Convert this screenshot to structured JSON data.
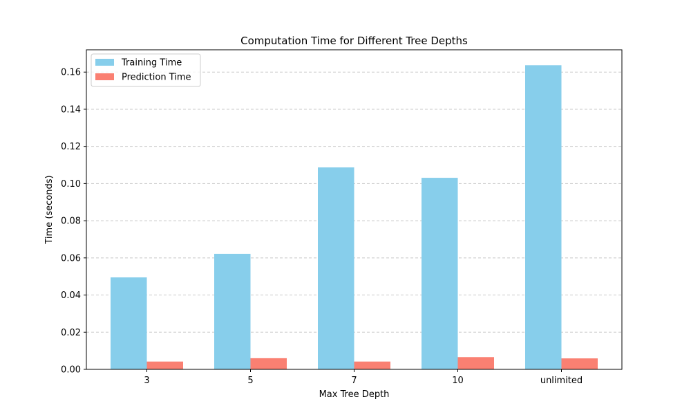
{
  "chart_data": {
    "type": "bar",
    "title": "Computation Time for Different Tree Depths",
    "xlabel": "Max Tree Depth",
    "ylabel": "Time (seconds)",
    "categories": [
      "3",
      "5",
      "7",
      "10",
      "unlimited"
    ],
    "series": [
      {
        "name": "Training Time",
        "color": "#87CEEB",
        "values": [
          0.0495,
          0.0622,
          0.1087,
          0.1031,
          0.1637
        ]
      },
      {
        "name": "Prediction Time",
        "color": "#FA8072",
        "values": [
          0.0042,
          0.006,
          0.0042,
          0.0066,
          0.0059
        ]
      }
    ],
    "ylim": [
      0,
      0.172
    ],
    "yticks": [
      "0.00",
      "0.02",
      "0.04",
      "0.06",
      "0.08",
      "0.10",
      "0.12",
      "0.14",
      "0.16"
    ],
    "grid": "y-dashed",
    "legend_position": "top-left"
  }
}
